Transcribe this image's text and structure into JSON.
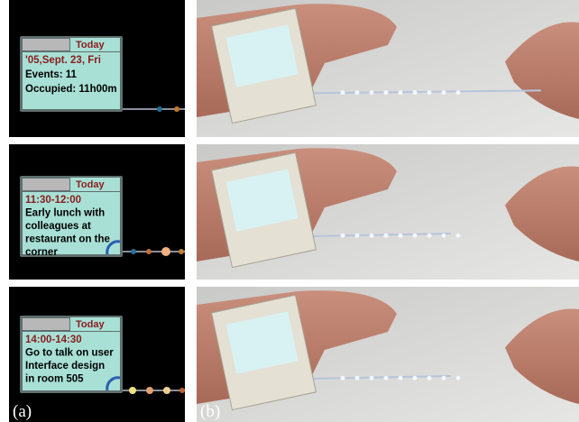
{
  "panels": [
    {
      "tab": "Today",
      "lines": [
        "'05,Sept. 23, Fri",
        "Events: 11",
        "Occupied: 11h00m"
      ]
    },
    {
      "tab": "Today",
      "lines": [
        "11:30-12:00",
        "Early lunch with",
        "colleagues at",
        "restaurant on the",
        "corner"
      ]
    },
    {
      "tab": "Today",
      "lines": [
        "14:00-14:30",
        "Go to talk on user",
        "Interface design",
        "in room 505"
      ]
    }
  ],
  "labels": {
    "a": "(a)",
    "b": "(b)"
  }
}
